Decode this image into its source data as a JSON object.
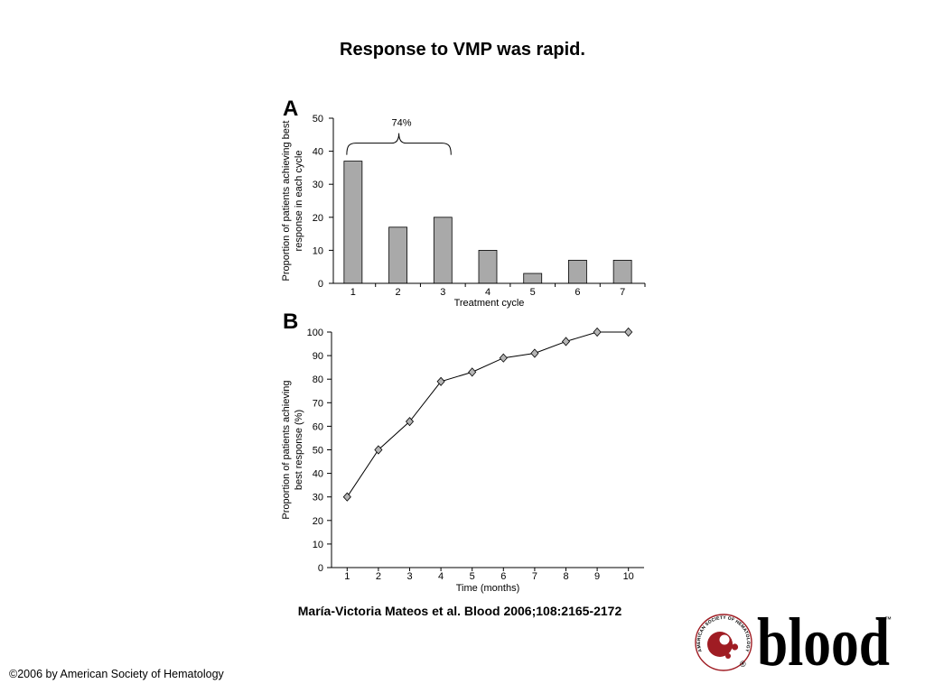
{
  "title": "Response to VMP was rapid.",
  "citation": "María-Victoria Mateos et al. Blood 2006;108:2165-2172",
  "copyright": "©2006 by American Society of Hematology",
  "logo": {
    "wordmark": "blood",
    "seal_text": "AMERICAN SOCIETY OF HEMATOLOGY",
    "trademark": "™",
    "registered": "®",
    "color": "#9f1c23"
  },
  "colors": {
    "background": "#ffffff",
    "text": "#000000",
    "axis": "#000000",
    "bar_fill": "#a9a9a9",
    "marker_fill": "#b5b5b5",
    "line": "#000000"
  },
  "chart_data": [
    {
      "panel": "A",
      "type": "bar",
      "categories": [
        "1",
        "2",
        "3",
        "4",
        "5",
        "6",
        "7"
      ],
      "values": [
        37,
        17,
        20,
        10,
        3,
        7,
        7
      ],
      "xlabel": "Treatment cycle",
      "ylabel": [
        "Proportion of patients achieving best",
        "response in each cycle"
      ],
      "ylim": [
        0,
        50
      ],
      "yticks": [
        0,
        10,
        20,
        30,
        40,
        50
      ],
      "grid": false,
      "annotations": [
        {
          "kind": "brace",
          "span": [
            "1",
            "3"
          ],
          "text": "74%"
        }
      ]
    },
    {
      "panel": "B",
      "type": "line",
      "marker": "diamond",
      "x": [
        1,
        2,
        3,
        4,
        5,
        6,
        7,
        8,
        9,
        10
      ],
      "y": [
        30,
        50,
        62,
        79,
        83,
        89,
        91,
        96,
        100,
        100
      ],
      "xlabel": "Time (months)",
      "ylabel": [
        "Proportion of patients achieving",
        "best response (%)"
      ],
      "xlim": [
        0.5,
        10.5
      ],
      "ylim": [
        0,
        100
      ],
      "xticks": [
        1,
        2,
        3,
        4,
        5,
        6,
        7,
        8,
        9,
        10
      ],
      "yticks": [
        0,
        10,
        20,
        30,
        40,
        50,
        60,
        70,
        80,
        90,
        100
      ],
      "grid": false
    }
  ]
}
